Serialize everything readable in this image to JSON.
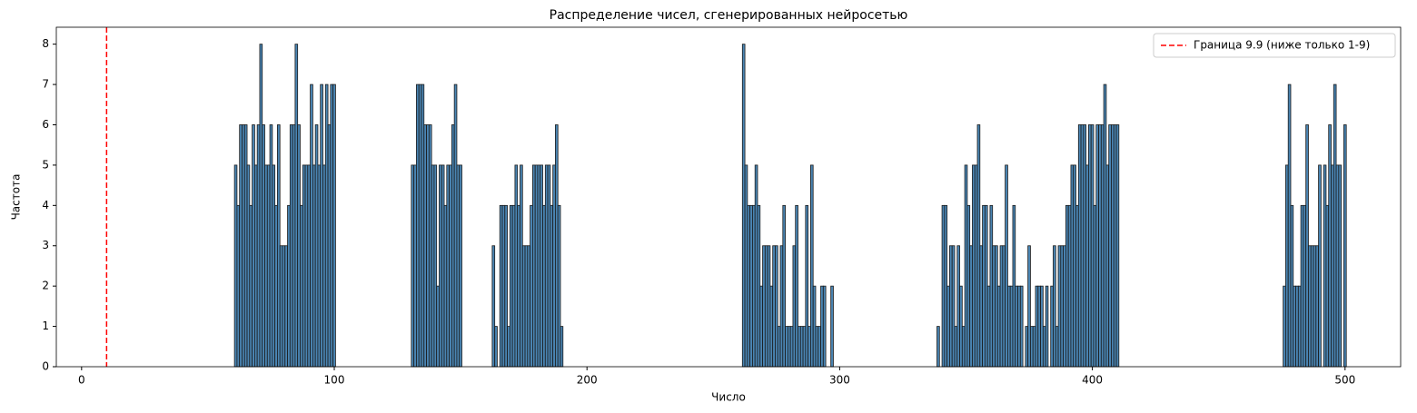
{
  "chart_data": {
    "type": "bar",
    "title": "Распределение чисел, сгенерированных нейросетью",
    "x_label": "Число",
    "y_label": "Частота",
    "x": [
      61,
      62,
      63,
      64,
      65,
      66,
      67,
      68,
      69,
      70,
      71,
      72,
      73,
      74,
      75,
      76,
      77,
      78,
      79,
      80,
      81,
      82,
      83,
      84,
      85,
      86,
      87,
      88,
      89,
      90,
      91,
      92,
      93,
      94,
      95,
      96,
      97,
      98,
      99,
      100,
      131,
      132,
      133,
      134,
      135,
      136,
      137,
      138,
      139,
      140,
      141,
      142,
      143,
      144,
      145,
      146,
      147,
      148,
      149,
      150,
      163,
      164,
      165,
      166,
      167,
      168,
      169,
      170,
      171,
      172,
      173,
      174,
      175,
      176,
      177,
      178,
      179,
      180,
      181,
      182,
      183,
      184,
      185,
      186,
      187,
      188,
      189,
      190,
      262,
      263,
      264,
      265,
      266,
      267,
      268,
      269,
      270,
      271,
      272,
      273,
      274,
      275,
      276,
      277,
      278,
      279,
      280,
      281,
      282,
      283,
      284,
      285,
      286,
      287,
      288,
      289,
      290,
      291,
      292,
      293,
      294,
      295,
      296,
      297,
      339,
      340,
      341,
      342,
      343,
      344,
      345,
      346,
      347,
      348,
      349,
      350,
      351,
      352,
      353,
      354,
      355,
      356,
      357,
      358,
      359,
      360,
      361,
      362,
      363,
      364,
      365,
      366,
      367,
      368,
      369,
      370,
      371,
      372,
      373,
      374,
      375,
      376,
      377,
      378,
      379,
      380,
      381,
      382,
      383,
      384,
      385,
      386,
      387,
      388,
      389,
      390,
      391,
      392,
      393,
      394,
      395,
      396,
      397,
      398,
      399,
      400,
      401,
      402,
      403,
      404,
      405,
      406,
      407,
      408,
      409,
      410,
      476,
      477,
      478,
      479,
      480,
      481,
      482,
      483,
      484,
      485,
      486,
      487,
      488,
      489,
      490,
      491,
      492,
      493,
      494,
      495,
      496,
      497,
      498,
      499,
      500
    ],
    "values": [
      5,
      4,
      6,
      6,
      6,
      5,
      4,
      6,
      5,
      6,
      8,
      6,
      5,
      5,
      6,
      5,
      4,
      6,
      3,
      3,
      3,
      4,
      6,
      6,
      8,
      6,
      4,
      5,
      5,
      5,
      7,
      5,
      6,
      5,
      7,
      5,
      7,
      6,
      7,
      7,
      5,
      5,
      7,
      7,
      7,
      6,
      6,
      6,
      5,
      5,
      2,
      5,
      5,
      4,
      5,
      5,
      6,
      7,
      5,
      5,
      3,
      1,
      0,
      4,
      4,
      4,
      1,
      4,
      4,
      5,
      4,
      5,
      3,
      3,
      3,
      4,
      5,
      5,
      5,
      5,
      4,
      5,
      5,
      4,
      5,
      6,
      4,
      1,
      8,
      5,
      4,
      4,
      4,
      5,
      4,
      2,
      3,
      3,
      3,
      2,
      3,
      3,
      1,
      3,
      4,
      1,
      1,
      1,
      3,
      4,
      1,
      1,
      1,
      4,
      1,
      5,
      2,
      1,
      1,
      2,
      2,
      0,
      0,
      2,
      1,
      0,
      4,
      4,
      2,
      3,
      3,
      1,
      3,
      2,
      1,
      5,
      4,
      3,
      5,
      5,
      6,
      3,
      4,
      4,
      2,
      4,
      3,
      3,
      2,
      3,
      3,
      5,
      2,
      2,
      4,
      2,
      2,
      2,
      0,
      1,
      3,
      1,
      1,
      2,
      2,
      2,
      1,
      2,
      0,
      2,
      3,
      1,
      3,
      3,
      3,
      4,
      4,
      5,
      5,
      4,
      6,
      6,
      6,
      5,
      6,
      6,
      4,
      6,
      6,
      6,
      7,
      5,
      6,
      6,
      6,
      6,
      2,
      5,
      7,
      4,
      2,
      2,
      2,
      4,
      4,
      6,
      3,
      3,
      3,
      3,
      5,
      0,
      5,
      4,
      6,
      5,
      7,
      5,
      5,
      0,
      6
    ],
    "bar_width": 1,
    "color": "#4a85b3",
    "edge_color": "#1a1a1a",
    "xlim": [
      -10,
      522
    ],
    "ylim": [
      0,
      8.42
    ],
    "xticks": [
      0,
      100,
      200,
      300,
      400,
      500
    ],
    "yticks": [
      0,
      1,
      2,
      3,
      4,
      5,
      6,
      7,
      8
    ],
    "vline": {
      "x": 9.9,
      "label": "Граница 9.9 (ниже только 1-9)",
      "color": "#ff0000"
    },
    "legend": "upper right"
  }
}
